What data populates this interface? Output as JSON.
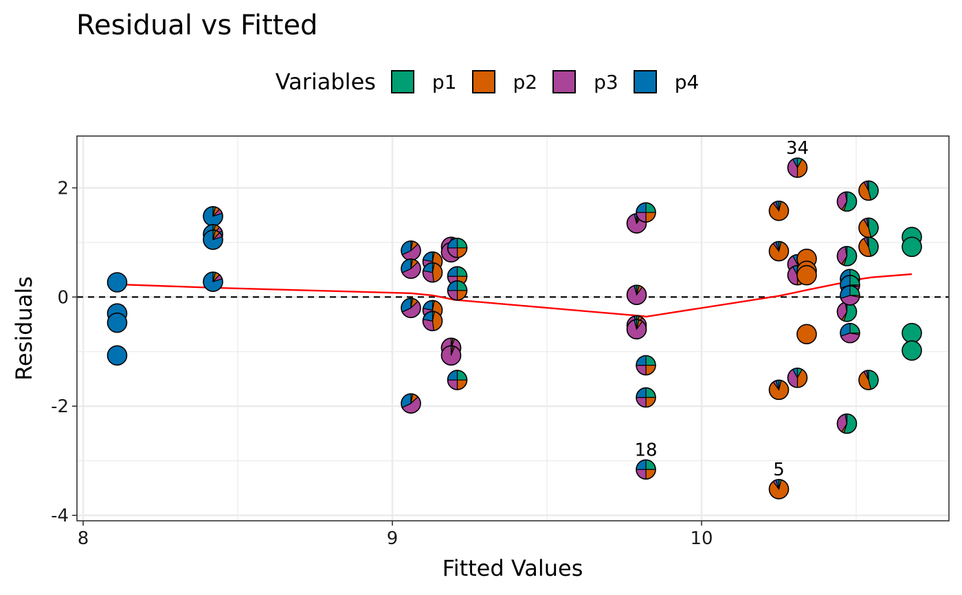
{
  "chart_data": {
    "type": "scatter",
    "title": "Residual vs Fitted",
    "xlabel": "Fitted Values",
    "ylabel": "Residuals",
    "xlim": [
      7.98,
      10.8
    ],
    "ylim": [
      -4.1,
      2.95
    ],
    "xticks": [
      8,
      9,
      10
    ],
    "xtick_labels": [
      "8",
      "9",
      "10"
    ],
    "yticks": [
      -4,
      -2,
      0,
      2
    ],
    "ytick_labels": [
      "-4",
      "-2",
      "0",
      "2"
    ],
    "x_minor": [
      8.5,
      9.5,
      10.5
    ],
    "y_minor": [
      -3,
      -1,
      1
    ],
    "grid": true,
    "reference_line": {
      "y": 0,
      "style": "dashed"
    },
    "legend": {
      "title": "Variables",
      "position": "top",
      "entries": [
        {
          "name": "p1",
          "color": "#009E73"
        },
        {
          "name": "p2",
          "color": "#D55E00"
        },
        {
          "name": "p3",
          "color": "#AA4499"
        },
        {
          "name": "p4",
          "color": "#0072B2"
        }
      ]
    },
    "smooth_line": {
      "color": "#FF0000",
      "x": [
        8.12,
        8.42,
        9.06,
        9.13,
        9.2,
        9.81,
        9.82,
        10.25,
        10.3,
        10.35,
        10.48,
        10.49,
        10.55,
        10.68
      ],
      "y": [
        0.23,
        0.17,
        0.07,
        0.03,
        -0.05,
        -0.35,
        -0.36,
        0.02,
        0.08,
        0.14,
        0.29,
        0.31,
        0.36,
        0.42
      ]
    },
    "points": [
      {
        "x": 8.11,
        "y": 0.27,
        "w": [
          0,
          0,
          0,
          1
        ]
      },
      {
        "x": 8.11,
        "y": -0.3,
        "w": [
          0,
          0,
          0,
          1
        ]
      },
      {
        "x": 8.11,
        "y": -0.47,
        "w": [
          0,
          0,
          0,
          1
        ]
      },
      {
        "x": 8.11,
        "y": -1.07,
        "w": [
          0,
          0,
          0,
          1
        ]
      },
      {
        "x": 8.42,
        "y": 1.48,
        "w": [
          0.04,
          0.08,
          0.08,
          0.8
        ]
      },
      {
        "x": 8.42,
        "y": 1.15,
        "w": [
          0.04,
          0.08,
          0.08,
          0.8
        ]
      },
      {
        "x": 8.42,
        "y": 1.05,
        "w": [
          0.04,
          0.08,
          0.08,
          0.8
        ]
      },
      {
        "x": 8.42,
        "y": 0.28,
        "w": [
          0.04,
          0.08,
          0.08,
          0.8
        ]
      },
      {
        "x": 9.06,
        "y": 0.85,
        "w": [
          0.03,
          0.1,
          0.55,
          0.32
        ]
      },
      {
        "x": 9.06,
        "y": 0.52,
        "w": [
          0.03,
          0.1,
          0.55,
          0.32
        ]
      },
      {
        "x": 9.06,
        "y": -0.2,
        "w": [
          0.03,
          0.1,
          0.55,
          0.32
        ]
      },
      {
        "x": 9.06,
        "y": -1.95,
        "w": [
          0.03,
          0.1,
          0.55,
          0.32
        ]
      },
      {
        "x": 9.13,
        "y": 0.65,
        "w": [
          0.03,
          0.45,
          0.3,
          0.22
        ]
      },
      {
        "x": 9.13,
        "y": 0.45,
        "w": [
          0.03,
          0.45,
          0.3,
          0.22
        ]
      },
      {
        "x": 9.13,
        "y": -0.24,
        "w": [
          0.03,
          0.45,
          0.3,
          0.22
        ]
      },
      {
        "x": 9.13,
        "y": -0.44,
        "w": [
          0.03,
          0.45,
          0.3,
          0.22
        ]
      },
      {
        "x": 9.19,
        "y": 0.92,
        "w": [
          0.03,
          0.03,
          0.94,
          0
        ]
      },
      {
        "x": 9.19,
        "y": 0.82,
        "w": [
          0.03,
          0.03,
          0.94,
          0
        ]
      },
      {
        "x": 9.19,
        "y": -0.93,
        "w": [
          0.03,
          0.03,
          0.94,
          0
        ]
      },
      {
        "x": 9.19,
        "y": -1.07,
        "w": [
          0.03,
          0.03,
          0.94,
          0
        ]
      },
      {
        "x": 9.21,
        "y": 0.9,
        "w": [
          0.25,
          0.25,
          0.25,
          0.25
        ]
      },
      {
        "x": 9.21,
        "y": 0.38,
        "w": [
          0.25,
          0.25,
          0.25,
          0.25
        ]
      },
      {
        "x": 9.21,
        "y": 0.12,
        "w": [
          0.25,
          0.25,
          0.25,
          0.25
        ]
      },
      {
        "x": 9.21,
        "y": -1.52,
        "w": [
          0.25,
          0.25,
          0.25,
          0.25
        ]
      },
      {
        "x": 9.79,
        "y": 1.35,
        "w": [
          0.04,
          0.06,
          0.86,
          0.04
        ]
      },
      {
        "x": 9.79,
        "y": 0.04,
        "w": [
          0.04,
          0.06,
          0.86,
          0.04
        ]
      },
      {
        "x": 9.79,
        "y": -0.52,
        "w": [
          0.04,
          0.06,
          0.86,
          0.04
        ]
      },
      {
        "x": 9.79,
        "y": -0.59,
        "w": [
          0.04,
          0.06,
          0.86,
          0.04
        ]
      },
      {
        "x": 9.82,
        "y": 1.55,
        "w": [
          0.25,
          0.25,
          0.25,
          0.25
        ]
      },
      {
        "x": 9.82,
        "y": -1.25,
        "w": [
          0.25,
          0.25,
          0.25,
          0.25
        ]
      },
      {
        "x": 9.82,
        "y": -1.84,
        "w": [
          0.25,
          0.25,
          0.25,
          0.25
        ]
      },
      {
        "x": 9.82,
        "y": -3.16,
        "w": [
          0.25,
          0.25,
          0.25,
          0.25
        ],
        "label": "18"
      },
      {
        "x": 10.25,
        "y": 1.58,
        "w": [
          0.04,
          0.86,
          0.05,
          0.05
        ]
      },
      {
        "x": 10.25,
        "y": 0.84,
        "w": [
          0.04,
          0.86,
          0.05,
          0.05
        ]
      },
      {
        "x": 10.25,
        "y": -1.7,
        "w": [
          0.04,
          0.86,
          0.05,
          0.05
        ]
      },
      {
        "x": 10.25,
        "y": -3.52,
        "w": [
          0.04,
          0.86,
          0.05,
          0.05
        ],
        "label": "5"
      },
      {
        "x": 10.31,
        "y": 2.37,
        "w": [
          0.08,
          0.42,
          0.42,
          0.08
        ],
        "label": "34"
      },
      {
        "x": 10.31,
        "y": 0.6,
        "w": [
          0.08,
          0.42,
          0.42,
          0.08
        ]
      },
      {
        "x": 10.31,
        "y": 0.4,
        "w": [
          0.08,
          0.42,
          0.42,
          0.08
        ]
      },
      {
        "x": 10.31,
        "y": -1.48,
        "w": [
          0.08,
          0.42,
          0.42,
          0.08
        ]
      },
      {
        "x": 10.34,
        "y": 0.7,
        "w": [
          0,
          1,
          0,
          0
        ]
      },
      {
        "x": 10.34,
        "y": 0.48,
        "w": [
          0,
          1,
          0,
          0
        ]
      },
      {
        "x": 10.34,
        "y": 0.4,
        "w": [
          0,
          1,
          0,
          0
        ]
      },
      {
        "x": 10.34,
        "y": -0.68,
        "w": [
          0,
          1,
          0,
          0
        ]
      },
      {
        "x": 10.47,
        "y": 1.75,
        "w": [
          0.55,
          0.04,
          0.38,
          0.03
        ]
      },
      {
        "x": 10.47,
        "y": 0.75,
        "w": [
          0.55,
          0.04,
          0.38,
          0.03
        ]
      },
      {
        "x": 10.47,
        "y": -0.27,
        "w": [
          0.55,
          0.04,
          0.38,
          0.03
        ]
      },
      {
        "x": 10.47,
        "y": -2.32,
        "w": [
          0.55,
          0.04,
          0.38,
          0.03
        ]
      },
      {
        "x": 10.48,
        "y": 0.33,
        "w": [
          0.25,
          0.03,
          0.42,
          0.3
        ]
      },
      {
        "x": 10.48,
        "y": 0.22,
        "w": [
          0.25,
          0.03,
          0.42,
          0.3
        ]
      },
      {
        "x": 10.48,
        "y": 0.03,
        "w": [
          0.25,
          0.03,
          0.42,
          0.3
        ]
      },
      {
        "x": 10.48,
        "y": -0.66,
        "w": [
          0.25,
          0.03,
          0.42,
          0.3
        ]
      },
      {
        "x": 10.54,
        "y": 1.95,
        "w": [
          0.46,
          0.46,
          0.05,
          0.03
        ]
      },
      {
        "x": 10.54,
        "y": 1.27,
        "w": [
          0.46,
          0.46,
          0.05,
          0.03
        ]
      },
      {
        "x": 10.54,
        "y": 0.92,
        "w": [
          0.46,
          0.46,
          0.05,
          0.03
        ]
      },
      {
        "x": 10.54,
        "y": -1.52,
        "w": [
          0.46,
          0.46,
          0.05,
          0.03
        ]
      },
      {
        "x": 10.68,
        "y": 1.1,
        "w": [
          1,
          0,
          0,
          0
        ]
      },
      {
        "x": 10.68,
        "y": 0.92,
        "w": [
          1,
          0,
          0,
          0
        ]
      },
      {
        "x": 10.68,
        "y": -0.66,
        "w": [
          1,
          0,
          0,
          0
        ]
      },
      {
        "x": 10.68,
        "y": -0.98,
        "w": [
          1,
          0,
          0,
          0
        ]
      }
    ]
  }
}
